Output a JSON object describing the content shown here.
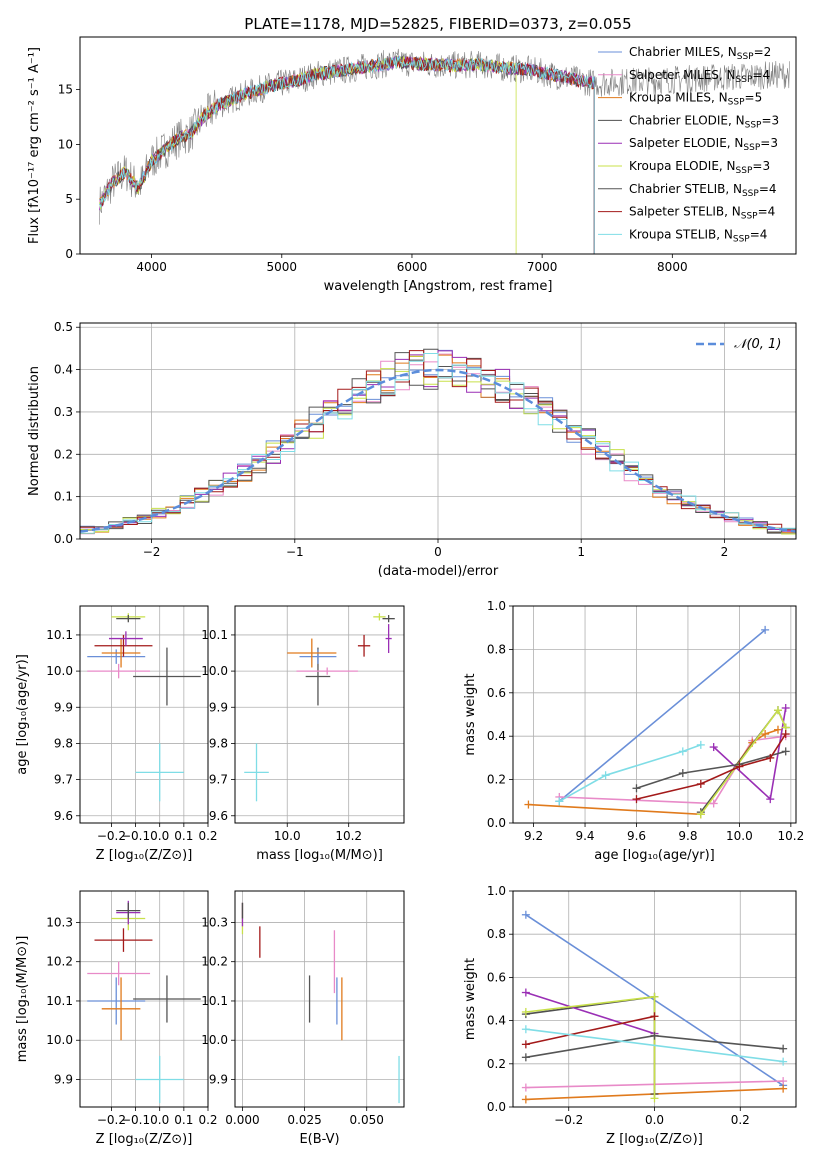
{
  "figure": {
    "title": "PLATE=1178, MJD=52825, FIBERID=0373, z=0.055"
  },
  "colors": {
    "Chabrier MILES": "#6a8fd8",
    "Salpeter MILES": "#e88ac8",
    "Kroupa MILES": "#e07a1c",
    "Chabrier ELODIE": "#4f4f4f",
    "Salpeter ELODIE": "#9a2fb5",
    "Kroupa ELODIE": "#c8e04a",
    "Chabrier STELIB": "#555555",
    "Salpeter STELIB": "#a31a1a",
    "Kroupa STELIB": "#7fdde6",
    "data_gray": "#808080",
    "gauss": "#5b8ddb",
    "grid": "#b0b0b0"
  },
  "chart_data": [
    {
      "id": "spectrum",
      "type": "line",
      "title": "PLATE=1178, MJD=52825, FIBERID=0373, z=0.055",
      "xlabel": "wavelength [Angstrom, rest frame]",
      "ylabel": "Flux [fλ10⁻¹⁷ erg cm⁻² s⁻¹ A⁻¹]",
      "xlim": [
        3450,
        8950
      ],
      "ylim": [
        0,
        19.8
      ],
      "xticks": [
        4000,
        5000,
        6000,
        7000,
        8000
      ],
      "yticks": [
        0,
        5,
        10,
        15
      ],
      "grid": false,
      "legend_position": "top-right",
      "legend": [
        "Chabrier MILES, N_SSP=2",
        "Salpeter MILES, N_SSP=4",
        "Kroupa MILES, N_SSP=5",
        "Chabrier ELODIE, N_SSP=3",
        "Salpeter ELODIE, N_SSP=3",
        "Kroupa ELODIE, N_SSP=3",
        "Chabrier STELIB, N_SSP=4",
        "Salpeter STELIB, N_SSP=4",
        "Kroupa STELIB, N_SSP=4"
      ],
      "continuum": {
        "x": [
          3600,
          3700,
          3800,
          3900,
          4000,
          4100,
          4200,
          4300,
          4400,
          4500,
          4700,
          4900,
          5100,
          5300,
          5500,
          5700,
          5900,
          6100,
          6300,
          6500,
          6700,
          6900,
          7100,
          7300,
          7400
        ],
        "y": [
          4.5,
          6.5,
          7.5,
          6.0,
          8.5,
          9.5,
          10.5,
          11.0,
          12.5,
          13.5,
          14.5,
          15.3,
          15.8,
          16.5,
          16.8,
          17.2,
          17.5,
          17.3,
          17.2,
          17.3,
          17.0,
          16.8,
          16.3,
          15.8,
          15.6
        ]
      }
    },
    {
      "id": "residuals",
      "type": "line",
      "xlabel": "(data-model)/error",
      "ylabel": "Normed distribution",
      "xlim": [
        -2.5,
        2.5
      ],
      "ylim": [
        0,
        0.51
      ],
      "xticks": [
        -2,
        -1,
        0,
        1,
        2
      ],
      "yticks": [
        0.0,
        0.1,
        0.2,
        0.3,
        0.4,
        0.5
      ],
      "grid": true,
      "legend_position": "top-right",
      "legend": [
        "𝒩(0, 1)"
      ],
      "gaussian": {
        "mean": 0,
        "sigma": 1
      }
    },
    {
      "id": "age_vs_Z",
      "type": "scatter",
      "xlabel": "Z [log₁₀(Z/Z⊙)]",
      "ylabel": "age  [log₁₀(age/yr)]",
      "xlim": [
        -0.33,
        0.2
      ],
      "ylim": [
        9.58,
        10.18
      ],
      "xticks": [
        -0.2,
        -0.1,
        0.0,
        0.1,
        0.2
      ],
      "yticks": [
        9.6,
        9.7,
        9.8,
        9.9,
        10.0,
        10.1
      ],
      "grid": true,
      "points": [
        {
          "model": "Kroupa STELIB",
          "x": 0.0,
          "y": 9.72,
          "xerr": 0.1,
          "yerr": 0.08
        },
        {
          "model": "Chabrier STELIB",
          "x": 0.03,
          "y": 9.985,
          "xerr": 0.14,
          "yerr": 0.08
        },
        {
          "model": "Salpeter MILES",
          "x": -0.17,
          "y": 10.0,
          "xerr": 0.13,
          "yerr": 0.02
        },
        {
          "model": "Chabrier MILES",
          "x": -0.18,
          "y": 10.04,
          "xerr": 0.12,
          "yerr": 0.02
        },
        {
          "model": "Kroupa MILES",
          "x": -0.16,
          "y": 10.05,
          "xerr": 0.08,
          "yerr": 0.04
        },
        {
          "model": "Salpeter STELIB",
          "x": -0.15,
          "y": 10.07,
          "xerr": 0.12,
          "yerr": 0.03
        },
        {
          "model": "Salpeter ELODIE",
          "x": -0.14,
          "y": 10.09,
          "xerr": 0.07,
          "yerr": 0.02
        },
        {
          "model": "Kroupa ELODIE",
          "x": -0.13,
          "y": 10.15,
          "xerr": 0.07,
          "yerr": 0.01
        },
        {
          "model": "Chabrier ELODIE",
          "x": -0.13,
          "y": 10.145,
          "xerr": 0.05,
          "yerr": 0.01
        }
      ]
    },
    {
      "id": "age_vs_mass",
      "type": "scatter",
      "xlabel": "mass [log₁₀(M/M⊙)]",
      "ylabel": "",
      "xlim": [
        9.83,
        10.38
      ],
      "ylim": [
        9.58,
        10.18
      ],
      "xticks": [
        10.0,
        10.2
      ],
      "yticks": [
        9.6,
        9.7,
        9.8,
        9.9,
        10.0,
        10.1
      ],
      "grid": true,
      "points": [
        {
          "model": "Kroupa STELIB",
          "x": 9.9,
          "y": 9.72,
          "xerr": 0.04,
          "yerr": 0.08
        },
        {
          "model": "Chabrier STELIB",
          "x": 10.1,
          "y": 9.985,
          "xerr": 0.04,
          "yerr": 0.08
        },
        {
          "model": "Salpeter MILES",
          "x": 10.13,
          "y": 10.0,
          "xerr": 0.1,
          "yerr": 0.01
        },
        {
          "model": "Chabrier MILES",
          "x": 10.1,
          "y": 10.04,
          "xerr": 0.06,
          "yerr": 0.02
        },
        {
          "model": "Kroupa MILES",
          "x": 10.08,
          "y": 10.05,
          "xerr": 0.08,
          "yerr": 0.04
        },
        {
          "model": "Salpeter STELIB",
          "x": 10.25,
          "y": 10.07,
          "xerr": 0.02,
          "yerr": 0.03
        },
        {
          "model": "Salpeter ELODIE",
          "x": 10.33,
          "y": 10.09,
          "xerr": 0.01,
          "yerr": 0.04
        },
        {
          "model": "Kroupa ELODIE",
          "x": 10.3,
          "y": 10.15,
          "xerr": 0.02,
          "yerr": 0.01
        },
        {
          "model": "Chabrier ELODIE",
          "x": 10.33,
          "y": 10.145,
          "xerr": 0.02,
          "yerr": 0.01
        }
      ]
    },
    {
      "id": "weight_vs_age",
      "type": "line",
      "xlabel": "age  [log₁₀(age/yr)]",
      "ylabel": "mass weight",
      "xlim": [
        9.12,
        10.22
      ],
      "ylim": [
        0,
        1.0
      ],
      "xticks": [
        9.2,
        9.4,
        9.6,
        9.8,
        10.0,
        10.2
      ],
      "yticks": [
        0.0,
        0.2,
        0.4,
        0.6,
        0.8,
        1.0
      ],
      "grid": true,
      "series": [
        {
          "model": "Chabrier MILES",
          "x": [
            9.3,
            10.1
          ],
          "y": [
            0.1,
            0.89
          ]
        },
        {
          "model": "Salpeter MILES",
          "x": [
            9.3,
            9.9,
            10.05,
            10.18
          ],
          "y": [
            0.12,
            0.09,
            0.38,
            0.4
          ]
        },
        {
          "model": "Kroupa MILES",
          "x": [
            9.18,
            9.85,
            10.05,
            10.1,
            10.15
          ],
          "y": [
            0.085,
            0.04,
            0.37,
            0.41,
            0.43
          ]
        },
        {
          "model": "Chabrier ELODIE",
          "x": [
            9.85,
            10.15,
            10.18
          ],
          "y": [
            0.05,
            0.52,
            0.44
          ]
        },
        {
          "model": "Salpeter ELODIE",
          "x": [
            9.9,
            10.12,
            10.18
          ],
          "y": [
            0.35,
            0.11,
            0.53
          ]
        },
        {
          "model": "Kroupa ELODIE",
          "x": [
            9.85,
            10.15,
            10.18
          ],
          "y": [
            0.04,
            0.52,
            0.44
          ]
        },
        {
          "model": "Chabrier STELIB",
          "x": [
            9.6,
            9.78,
            10.0,
            10.18
          ],
          "y": [
            0.16,
            0.23,
            0.27,
            0.33
          ]
        },
        {
          "model": "Salpeter STELIB",
          "x": [
            9.6,
            9.85,
            10.0,
            10.12,
            10.18
          ],
          "y": [
            0.11,
            0.18,
            0.26,
            0.3,
            0.41
          ]
        },
        {
          "model": "Kroupa STELIB",
          "x": [
            9.3,
            9.48,
            9.78,
            9.85
          ],
          "y": [
            0.1,
            0.22,
            0.33,
            0.36
          ]
        }
      ]
    },
    {
      "id": "mass_vs_Z",
      "type": "scatter",
      "xlabel": "Z [log₁₀(Z/Z⊙)]",
      "ylabel": "mass [log₁₀(M/M⊙)]",
      "xlim": [
        -0.33,
        0.2
      ],
      "ylim": [
        9.83,
        10.38
      ],
      "xticks": [
        -0.2,
        -0.1,
        0.0,
        0.1,
        0.2
      ],
      "yticks": [
        9.9,
        10.0,
        10.1,
        10.2,
        10.3
      ],
      "grid": true,
      "points": [
        {
          "model": "Kroupa STELIB",
          "x": 0.0,
          "y": 9.9,
          "xerr": 0.1,
          "yerr": 0.06
        },
        {
          "model": "Chabrier STELIB",
          "x": 0.03,
          "y": 10.105,
          "xerr": 0.14,
          "yerr": 0.06
        },
        {
          "model": "Chabrier MILES",
          "x": -0.18,
          "y": 10.1,
          "xerr": 0.12,
          "yerr": 0.06
        },
        {
          "model": "Kroupa MILES",
          "x": -0.16,
          "y": 10.08,
          "xerr": 0.08,
          "yerr": 0.08
        },
        {
          "model": "Salpeter MILES",
          "x": -0.17,
          "y": 10.17,
          "xerr": 0.13,
          "yerr": 0.03
        },
        {
          "model": "Salpeter STELIB",
          "x": -0.15,
          "y": 10.255,
          "xerr": 0.12,
          "yerr": 0.03
        },
        {
          "model": "Kroupa ELODIE",
          "x": -0.13,
          "y": 10.31,
          "xerr": 0.07,
          "yerr": 0.03
        },
        {
          "model": "Salpeter ELODIE",
          "x": -0.13,
          "y": 10.325,
          "xerr": 0.05,
          "yerr": 0.03
        },
        {
          "model": "Chabrier ELODIE",
          "x": -0.13,
          "y": 10.33,
          "xerr": 0.05,
          "yerr": 0.02
        }
      ]
    },
    {
      "id": "mass_vs_ebv",
      "type": "scatter",
      "xlabel": "E(B-V)",
      "ylabel": "",
      "xlim": [
        -0.003,
        0.065
      ],
      "ylim": [
        9.83,
        10.38
      ],
      "xticks": [
        0.0,
        0.025,
        0.05
      ],
      "xticklabels": [
        "0.000",
        "0.025",
        "0.050"
      ],
      "yticks": [
        9.9,
        10.0,
        10.1,
        10.2,
        10.3
      ],
      "grid": true,
      "points": [
        {
          "model": "Kroupa STELIB",
          "x": 0.063,
          "y": 9.9,
          "yerr": 0.06
        },
        {
          "model": "Chabrier STELIB",
          "x": 0.027,
          "y": 10.105,
          "yerr": 0.06
        },
        {
          "model": "Kroupa MILES",
          "x": 0.04,
          "y": 10.08,
          "yerr": 0.08
        },
        {
          "model": "Chabrier MILES",
          "x": 0.038,
          "y": 10.1,
          "yerr": 0.06
        },
        {
          "model": "Salpeter MILES",
          "x": 0.037,
          "y": 10.2,
          "yerr": 0.08
        },
        {
          "model": "Salpeter STELIB",
          "x": 0.007,
          "y": 10.25,
          "yerr": 0.04
        },
        {
          "model": "Kroupa ELODIE",
          "x": 0.0,
          "y": 10.31,
          "yerr": 0.04
        },
        {
          "model": "Salpeter ELODIE",
          "x": 0.0,
          "y": 10.32,
          "yerr": 0.03
        },
        {
          "model": "Chabrier ELODIE",
          "x": 0.0,
          "y": 10.33,
          "yerr": 0.02
        }
      ]
    },
    {
      "id": "weight_vs_Z",
      "type": "line",
      "xlabel": "Z [log₁₀(Z/Z⊙)]",
      "ylabel": "mass weight",
      "xlim": [
        -0.33,
        0.33
      ],
      "ylim": [
        0,
        1.0
      ],
      "xticks": [
        -0.2,
        0.0,
        0.2
      ],
      "yticks": [
        0.0,
        0.2,
        0.4,
        0.6,
        0.8,
        1.0
      ],
      "grid": true,
      "series": [
        {
          "model": "Chabrier MILES",
          "x": [
            -0.3,
            0.3
          ],
          "y": [
            0.89,
            0.1
          ]
        },
        {
          "model": "Salpeter MILES",
          "x": [
            -0.3,
            0.3
          ],
          "y": [
            0.09,
            0.12
          ]
        },
        {
          "model": "Kroupa MILES",
          "x": [
            -0.3,
            0.3
          ],
          "y": [
            0.035,
            0.085
          ]
        },
        {
          "model": "Chabrier ELODIE",
          "x": [
            -0.3,
            0.0,
            0.0
          ],
          "y": [
            0.43,
            0.51,
            0.06
          ]
        },
        {
          "model": "Salpeter ELODIE",
          "x": [
            -0.3,
            0.0
          ],
          "y": [
            0.53,
            0.34
          ]
        },
        {
          "model": "Kroupa ELODIE",
          "x": [
            -0.3,
            0.0,
            0.0
          ],
          "y": [
            0.44,
            0.51,
            0.04
          ]
        },
        {
          "model": "Chabrier STELIB",
          "x": [
            -0.3,
            0.0,
            0.3
          ],
          "y": [
            0.23,
            0.33,
            0.27
          ]
        },
        {
          "model": "Salpeter STELIB",
          "x": [
            -0.3,
            0.0
          ],
          "y": [
            0.29,
            0.42
          ]
        },
        {
          "model": "Kroupa STELIB",
          "x": [
            -0.3,
            0.3
          ],
          "y": [
            0.36,
            0.21
          ]
        }
      ]
    }
  ]
}
